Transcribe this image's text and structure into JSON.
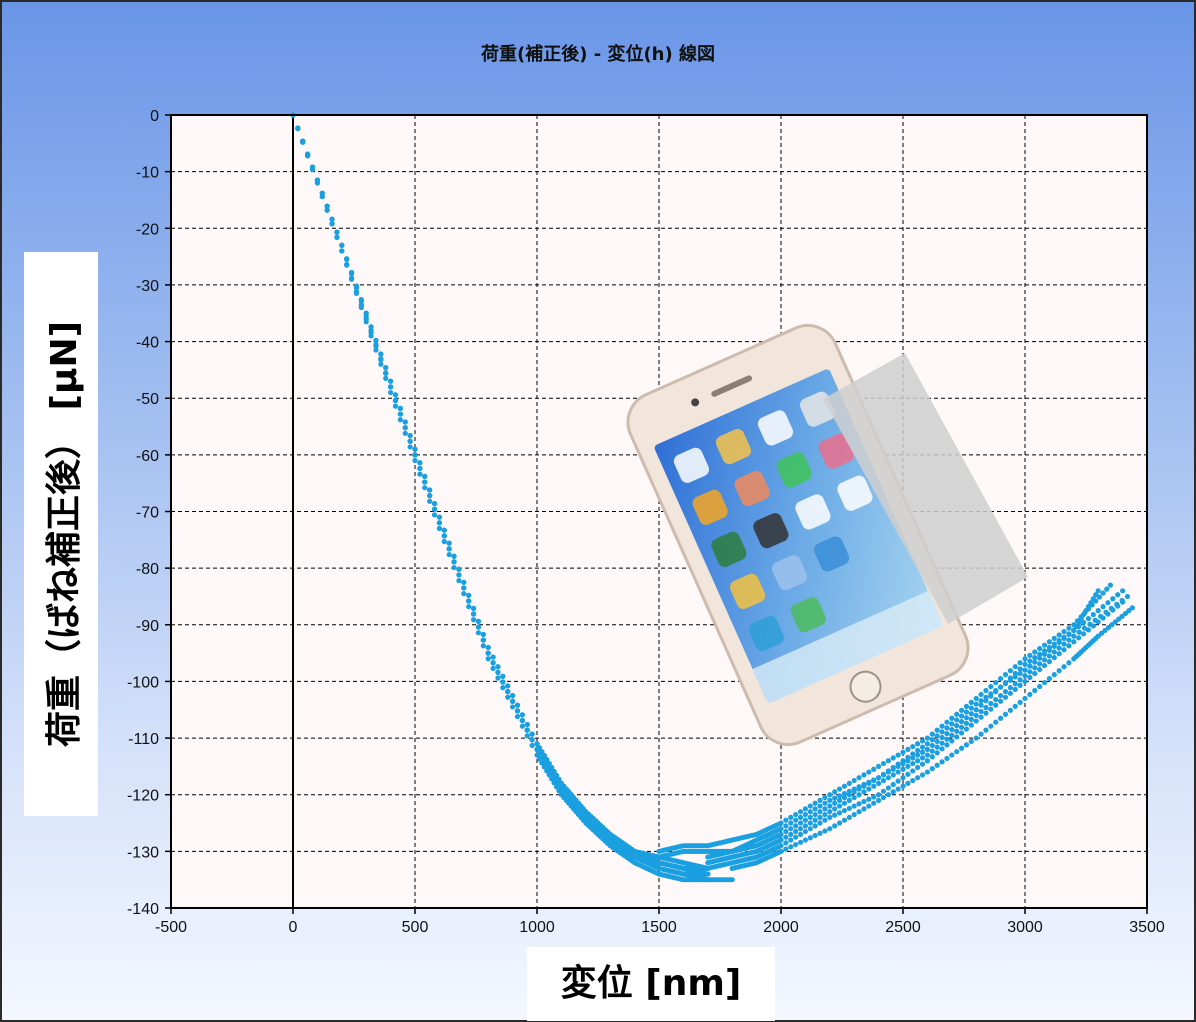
{
  "chart_data": {
    "type": "scatter",
    "title": "荷重(補正後) - 変位(h) 線図",
    "xlabel": "変位 [nm]",
    "ylabel": "荷重（ばね補正後） [μN]",
    "xlim": [
      -500,
      3500
    ],
    "ylim": [
      -140,
      0
    ],
    "xticks": [
      -500,
      0,
      500,
      1000,
      1500,
      2000,
      2500,
      3000,
      3500
    ],
    "yticks": [
      0,
      -10,
      -20,
      -30,
      -40,
      -50,
      -60,
      -70,
      -80,
      -90,
      -100,
      -110,
      -120,
      -130,
      -140
    ],
    "grid": true,
    "marker_color": "#1a9fe0",
    "series": [
      {
        "loading": [
          [
            0,
            0
          ],
          [
            200,
            -24
          ],
          [
            400,
            -48
          ],
          [
            600,
            -72
          ],
          [
            800,
            -95
          ],
          [
            1000,
            -112
          ],
          [
            1100,
            -119
          ],
          [
            1200,
            -124
          ],
          [
            1300,
            -128
          ],
          [
            1400,
            -131
          ],
          [
            1500,
            -133
          ],
          [
            1600,
            -134
          ],
          [
            1700,
            -134
          ]
        ],
        "unloading": [
          [
            1500,
            -131
          ],
          [
            1600,
            -130
          ],
          [
            1700,
            -130
          ],
          [
            1800,
            -130
          ],
          [
            1900,
            -128
          ],
          [
            2000,
            -126
          ],
          [
            2200,
            -121
          ],
          [
            2400,
            -117
          ],
          [
            2600,
            -111
          ],
          [
            2800,
            -104
          ],
          [
            3000,
            -98
          ],
          [
            3200,
            -91
          ],
          [
            3400,
            -84
          ]
        ]
      },
      {
        "loading": [
          [
            0,
            0
          ],
          [
            200,
            -23
          ],
          [
            400,
            -47
          ],
          [
            600,
            -71
          ],
          [
            800,
            -94
          ],
          [
            1000,
            -111
          ],
          [
            1100,
            -118
          ],
          [
            1200,
            -123
          ],
          [
            1300,
            -127
          ],
          [
            1400,
            -130
          ],
          [
            1500,
            -132
          ],
          [
            1600,
            -133
          ],
          [
            1700,
            -133
          ]
        ],
        "unloading": [
          [
            1500,
            -130
          ],
          [
            1600,
            -129
          ],
          [
            1700,
            -129
          ],
          [
            1800,
            -128
          ],
          [
            1900,
            -127
          ],
          [
            2000,
            -125
          ],
          [
            2200,
            -120
          ],
          [
            2400,
            -115
          ],
          [
            2600,
            -110
          ],
          [
            2800,
            -103
          ],
          [
            3000,
            -96
          ],
          [
            3200,
            -90
          ],
          [
            3350,
            -83
          ]
        ]
      },
      {
        "loading": [
          [
            0,
            0
          ],
          [
            200,
            -24
          ],
          [
            400,
            -49
          ],
          [
            600,
            -73
          ],
          [
            800,
            -96
          ],
          [
            1000,
            -113
          ],
          [
            1100,
            -120
          ],
          [
            1200,
            -125
          ],
          [
            1300,
            -129
          ],
          [
            1400,
            -132
          ],
          [
            1500,
            -134
          ],
          [
            1600,
            -135
          ],
          [
            1700,
            -135
          ]
        ],
        "unloading": [
          [
            1600,
            -133
          ],
          [
            1700,
            -133
          ],
          [
            1800,
            -132
          ],
          [
            1900,
            -131
          ],
          [
            2000,
            -129
          ],
          [
            2200,
            -124
          ],
          [
            2400,
            -120
          ],
          [
            2600,
            -114
          ],
          [
            2800,
            -107
          ],
          [
            3000,
            -100
          ],
          [
            3200,
            -93
          ],
          [
            3400,
            -86
          ]
        ]
      },
      {
        "loading": [
          [
            0,
            0
          ],
          [
            200,
            -23
          ],
          [
            400,
            -48
          ],
          [
            600,
            -72
          ],
          [
            800,
            -95
          ],
          [
            1000,
            -112
          ],
          [
            1100,
            -119
          ],
          [
            1200,
            -124
          ],
          [
            1300,
            -128
          ],
          [
            1400,
            -131
          ],
          [
            1500,
            -132
          ],
          [
            1600,
            -133
          ],
          [
            1700,
            -134
          ]
        ],
        "unloading": [
          [
            1700,
            -132
          ],
          [
            1800,
            -131
          ],
          [
            1900,
            -130
          ],
          [
            2000,
            -128
          ],
          [
            2200,
            -123
          ],
          [
            2400,
            -118
          ],
          [
            2600,
            -113
          ],
          [
            2800,
            -106
          ],
          [
            3000,
            -99
          ],
          [
            3200,
            -92
          ],
          [
            3420,
            -85
          ]
        ]
      },
      {
        "loading": [
          [
            0,
            0
          ],
          [
            200,
            -24
          ],
          [
            400,
            -48
          ],
          [
            600,
            -72
          ],
          [
            800,
            -95
          ],
          [
            1000,
            -112
          ],
          [
            1100,
            -119
          ],
          [
            1200,
            -124
          ],
          [
            1300,
            -128
          ],
          [
            1400,
            -131
          ],
          [
            1500,
            -133
          ],
          [
            1600,
            -134
          ],
          [
            1700,
            -135
          ],
          [
            1800,
            -135
          ]
        ],
        "unloading": [
          [
            1800,
            -133
          ],
          [
            1900,
            -132
          ],
          [
            2000,
            -130
          ],
          [
            2200,
            -126
          ],
          [
            2400,
            -121
          ],
          [
            2600,
            -116
          ],
          [
            2800,
            -110
          ],
          [
            3000,
            -103
          ],
          [
            3200,
            -96
          ],
          [
            3300,
            -92
          ],
          [
            3440,
            -87
          ]
        ]
      },
      {
        "loading": [
          [
            0,
            0
          ],
          [
            200,
            -23
          ],
          [
            400,
            -47
          ],
          [
            600,
            -71
          ],
          [
            800,
            -94
          ],
          [
            1000,
            -111
          ],
          [
            1100,
            -118
          ],
          [
            1200,
            -123
          ],
          [
            1300,
            -127
          ],
          [
            1400,
            -130
          ],
          [
            1500,
            -131
          ],
          [
            1600,
            -132
          ],
          [
            1700,
            -133
          ]
        ],
        "unloading": [
          [
            1700,
            -131
          ],
          [
            1800,
            -130
          ],
          [
            1900,
            -129
          ],
          [
            2000,
            -127
          ],
          [
            2200,
            -122
          ],
          [
            2400,
            -117
          ],
          [
            2600,
            -112
          ],
          [
            2800,
            -105
          ],
          [
            3000,
            -97
          ],
          [
            3200,
            -91
          ],
          [
            3300,
            -84
          ]
        ]
      }
    ]
  }
}
